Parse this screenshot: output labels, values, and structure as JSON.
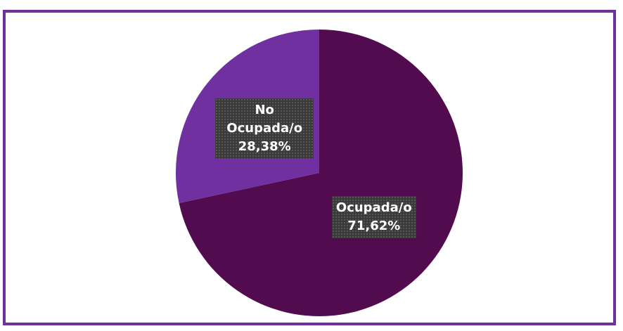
{
  "chart_data": {
    "type": "pie",
    "categories": [
      "Ocupada/o",
      "No Ocupada/o"
    ],
    "values": [
      71.62,
      28.38
    ],
    "value_labels": [
      "71,62%",
      "28,38%"
    ],
    "colors": [
      "#520b4f",
      "#7030a0"
    ]
  }
}
